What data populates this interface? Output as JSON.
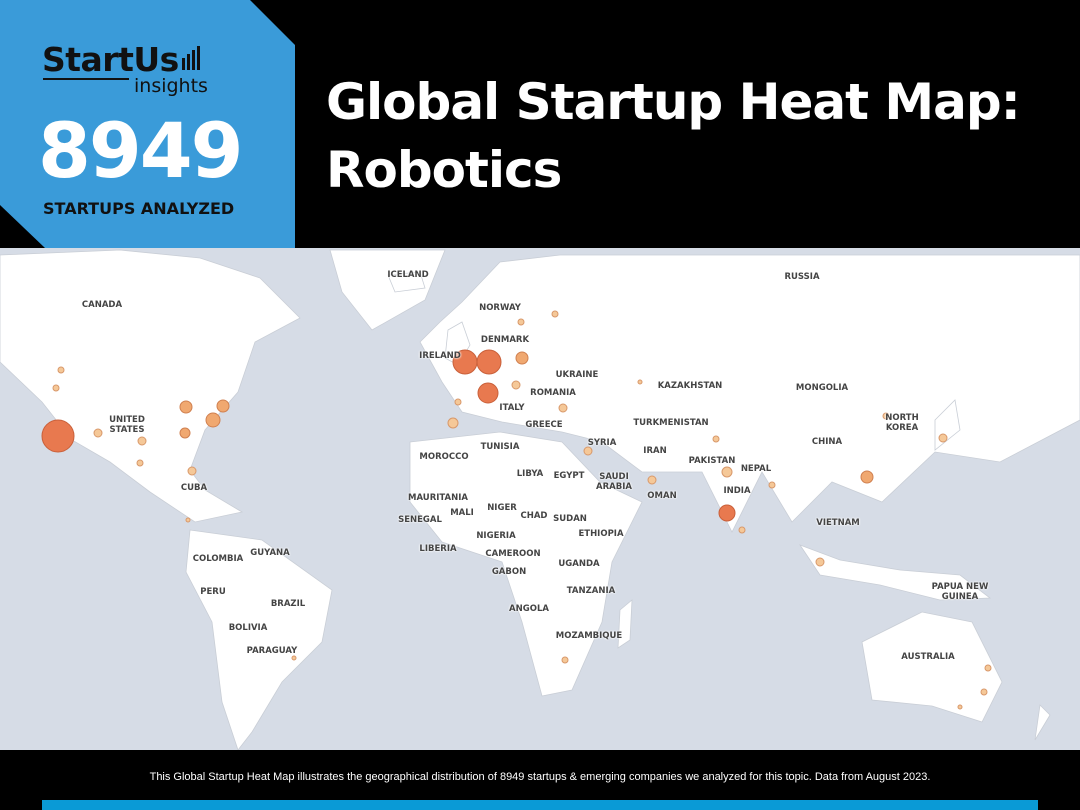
{
  "header": {
    "logo": {
      "name": "StartUs",
      "sub": "insights"
    },
    "startup_count": "8949",
    "startup_count_label": "STARTUPS ANALYZED",
    "title_line1": "Global Startup Heat Map:",
    "title_line2": "Robotics",
    "accent_color": "#3a9bd9"
  },
  "map": {
    "ocean_color": "#d6dce6",
    "land_color": "#ffffff",
    "bubble_colors": {
      "large": "#e8794f",
      "medium": "#f0a870",
      "small": "#f5c898"
    },
    "labels": [
      "ICELAND",
      "RUSSIA",
      "CANADA",
      "NORWAY",
      "DENMARK",
      "IRELAND",
      "UKRAINE",
      "KAZAKHSTAN",
      "MONGOLIA",
      "ROMANIA",
      "ITALY",
      "UNITED STATES",
      "GREECE",
      "TURKMENISTAN",
      "NORTH KOREA",
      "TUNISIA",
      "SYRIA",
      "CHINA",
      "IRAN",
      "MOROCCO",
      "LIBYA",
      "EGYPT",
      "SAUDI ARABIA",
      "PAKISTAN",
      "NEPAL",
      "CUBA",
      "OMAN",
      "INDIA",
      "MAURITANIA",
      "MALI",
      "NIGER",
      "CHAD",
      "SUDAN",
      "SENEGAL",
      "NIGERIA",
      "ETHIOPIA",
      "VIETNAM",
      "LIBERIA",
      "CAMEROON",
      "COLOMBIA",
      "GUYANA",
      "GABON",
      "UGANDA",
      "PERU",
      "BRAZIL",
      "TANZANIA",
      "PAPUA NEW GUINEA",
      "BOLIVIA",
      "ANGOLA",
      "MOZAMBIQUE",
      "PARAGUAY",
      "AUSTRALIA"
    ]
  },
  "footer": {
    "text": "This Global Startup Heat Map illustrates the geographical distribution of 8949 startups & emerging companies we analyzed for this topic. Data from August 2023."
  }
}
